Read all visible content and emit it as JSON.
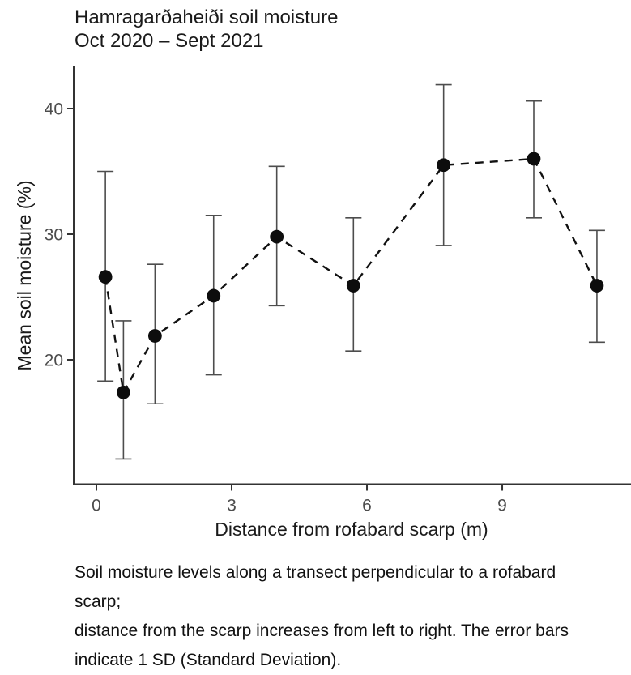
{
  "title": {
    "line1": "Hamragarðaheiði soil moisture",
    "line2": "Oct 2020 – Sept 2021"
  },
  "caption": {
    "lines": [
      "Soil moisture levels along a transect perpendicular to a rofabard scarp;",
      "distance from the scarp increases from left to right. The error bars",
      "indicate 1 SD (Standard Deviation)."
    ]
  },
  "chart_data": {
    "type": "scatter",
    "connected": true,
    "line_dash": "dashed",
    "marker": "filled-circle",
    "error_bars": "1 SD",
    "title": "Hamragarðaheiði soil moisture Oct 2020 – Sept 2021",
    "xlabel": "Distance from rofabard scarp (m)",
    "ylabel": "Mean soil moisture (%)",
    "x_ticks": [
      0,
      3,
      6,
      9
    ],
    "y_ticks": [
      20,
      30,
      40
    ],
    "xlim": [
      -0.56,
      11.86
    ],
    "ylim": [
      10.1,
      43.3
    ],
    "grid": false,
    "legend": "none",
    "points": [
      {
        "x": 0.2,
        "y": 26.6,
        "ylo": 18.3,
        "yhi": 35.0
      },
      {
        "x": 0.6,
        "y": 17.4,
        "ylo": 12.1,
        "yhi": 23.1
      },
      {
        "x": 1.3,
        "y": 21.9,
        "ylo": 16.5,
        "yhi": 27.6
      },
      {
        "x": 2.6,
        "y": 25.1,
        "ylo": 18.8,
        "yhi": 31.5
      },
      {
        "x": 4.0,
        "y": 29.8,
        "ylo": 24.3,
        "yhi": 35.4
      },
      {
        "x": 5.7,
        "y": 25.9,
        "ylo": 20.7,
        "yhi": 31.3
      },
      {
        "x": 7.7,
        "y": 35.5,
        "ylo": 29.1,
        "yhi": 41.9
      },
      {
        "x": 9.7,
        "y": 36.0,
        "ylo": 31.3,
        "yhi": 40.6
      },
      {
        "x": 11.1,
        "y": 25.9,
        "ylo": 21.4,
        "yhi": 30.3
      }
    ],
    "colors": {
      "point": "#0d0d0d",
      "line": "#111111",
      "error_bar": "#4d4d4d",
      "axis_line": "#333333",
      "tick_label": "#4d4d4d",
      "axis_label": "#1a1a1a",
      "background": "#ffffff"
    }
  }
}
